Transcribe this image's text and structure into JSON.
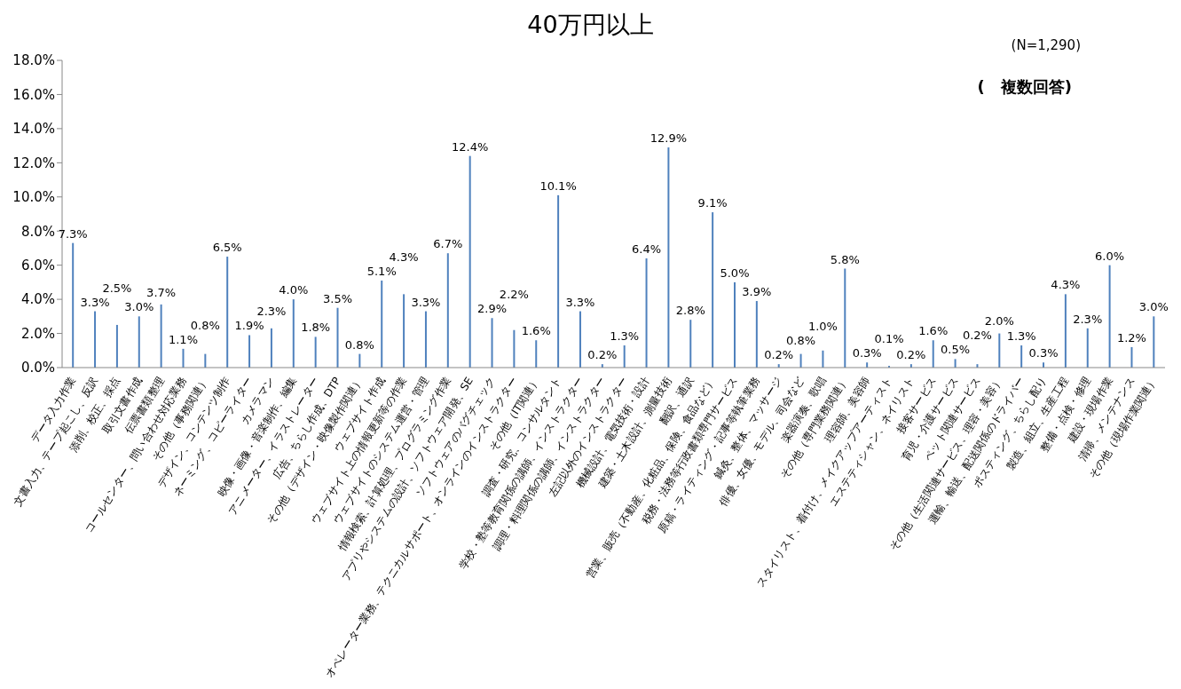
{
  "chart_data": {
    "type": "bar",
    "title": "40万円以上",
    "annotations": [
      "(N=1,290)",
      "(　複数回答)"
    ],
    "categories": [
      "データ入力作業",
      "文書入力、テープ起こし、反訳",
      "添削、校正、採点",
      "取引文書作成",
      "伝票書類整理",
      "コールセンター、問い合わせ対応業務",
      "その他（事務関連）",
      "デザイン、コンテンツ制作",
      "ネーミング、コピーライター",
      "カメラマン",
      "映像・画像・音楽制作、編集",
      "アニメーター、イラストレーター",
      "広告、ちらし作成、DTP",
      "その他（デザイン・映像製作関連）",
      "ウェブサイト作成",
      "ウェブサイト上の情報更新等の作業",
      "ウェブサイトのシステム運営・管理",
      "情報検索、計算処理、プログラミング作業",
      "アプリやシステムの設計、ソフトウェア開発、SE",
      "ソフトウェアのバグチェック",
      "オペレーター業務、テクニカルサポート、オンラインのインストラクター",
      "その他（IT関連）",
      "調査・研究、コンサルタント",
      "学校・塾等教育関係の講師、インストラクター",
      "調理・料理関係の講師、インストラクター",
      "左記以外のインストラクター",
      "機械設計、電気技術・設計",
      "建築・土木設計、測量技術",
      "翻訳、通訳",
      "営業、販売（不動産、化粧品、保険、食品など）",
      "税務・法務等行政書類専門サービス",
      "原稿・ライティング・記事等執筆業務",
      "鍼灸、整体、マッサージ",
      "俳優、女優、モデル、司会など",
      "楽器演奏、歌唱",
      "その他（専門業務関連）",
      "理容師、美容師",
      "スタイリスト、着付け、メイクアップアーティスト",
      "エステティシャン、ネイリスト",
      "接客サービス",
      "育児・介護サービス",
      "ペット関連サービス",
      "その他（生活関連サービス、理容・美容）",
      "運輸、輸送、配送関係のドライバー",
      "ポスティング、ちらし配り",
      "製造、組立、生産工程",
      "整備・点検・修理",
      "建設・現場作業",
      "清掃、メンテナンス",
      "その他（現場作業関連）"
    ],
    "values": [
      7.3,
      3.3,
      2.5,
      3.0,
      3.7,
      1.1,
      0.8,
      6.5,
      1.9,
      2.3,
      4.0,
      1.8,
      3.5,
      0.8,
      5.1,
      4.3,
      3.3,
      6.7,
      12.4,
      2.9,
      2.2,
      1.6,
      10.1,
      3.3,
      0.2,
      1.3,
      6.4,
      12.9,
      2.8,
      9.1,
      5.0,
      3.9,
      0.2,
      0.8,
      1.0,
      5.8,
      0.3,
      0.1,
      0.2,
      1.6,
      0.5,
      0.2,
      2.0,
      1.3,
      0.3,
      4.3,
      2.3,
      6.0,
      1.2,
      3.0
    ],
    "value_labels": [
      "7.3%",
      "3.3%",
      "2.5%",
      "3.0%",
      "3.7%",
      "1.1%",
      "0.8%",
      "6.5%",
      "1.9%",
      "2.3%",
      "4.0%",
      "1.8%",
      "3.5%",
      "0.8%",
      "5.1%",
      "4.3%",
      "3.3%",
      "6.7%",
      "12.4%",
      "2.9%",
      "2.2%",
      "1.6%",
      "10.1%",
      "3.3%",
      "0.2%",
      "1.3%",
      "6.4%",
      "12.9%",
      "2.8%",
      "9.1%",
      "5.0%",
      "3.9%",
      "0.2%",
      "0.8%",
      "1.0%",
      "5.8%",
      "0.3%",
      "0.1%",
      "0.2%",
      "1.6%",
      "0.5%",
      "0.2%",
      "2.0%",
      "1.3%",
      "0.3%",
      "4.3%",
      "2.3%",
      "6.0%",
      "1.2%",
      "3.0%"
    ],
    "color": "#4f81bd",
    "ylim": [
      0,
      18
    ],
    "yticks": [
      {
        "value": 0,
        "label": "0.0%"
      },
      {
        "value": 2,
        "label": "2.0%"
      },
      {
        "value": 4,
        "label": "4.0%"
      },
      {
        "value": 6,
        "label": "6.0%"
      },
      {
        "value": 8,
        "label": "8.0%"
      },
      {
        "value": 10,
        "label": "10.0%"
      },
      {
        "value": 12,
        "label": "12.0%"
      },
      {
        "value": 14,
        "label": "14.0%"
      },
      {
        "value": 16,
        "label": "16.0%"
      },
      {
        "value": 18,
        "label": "18.0%"
      }
    ],
    "grid": false,
    "legend": false
  }
}
